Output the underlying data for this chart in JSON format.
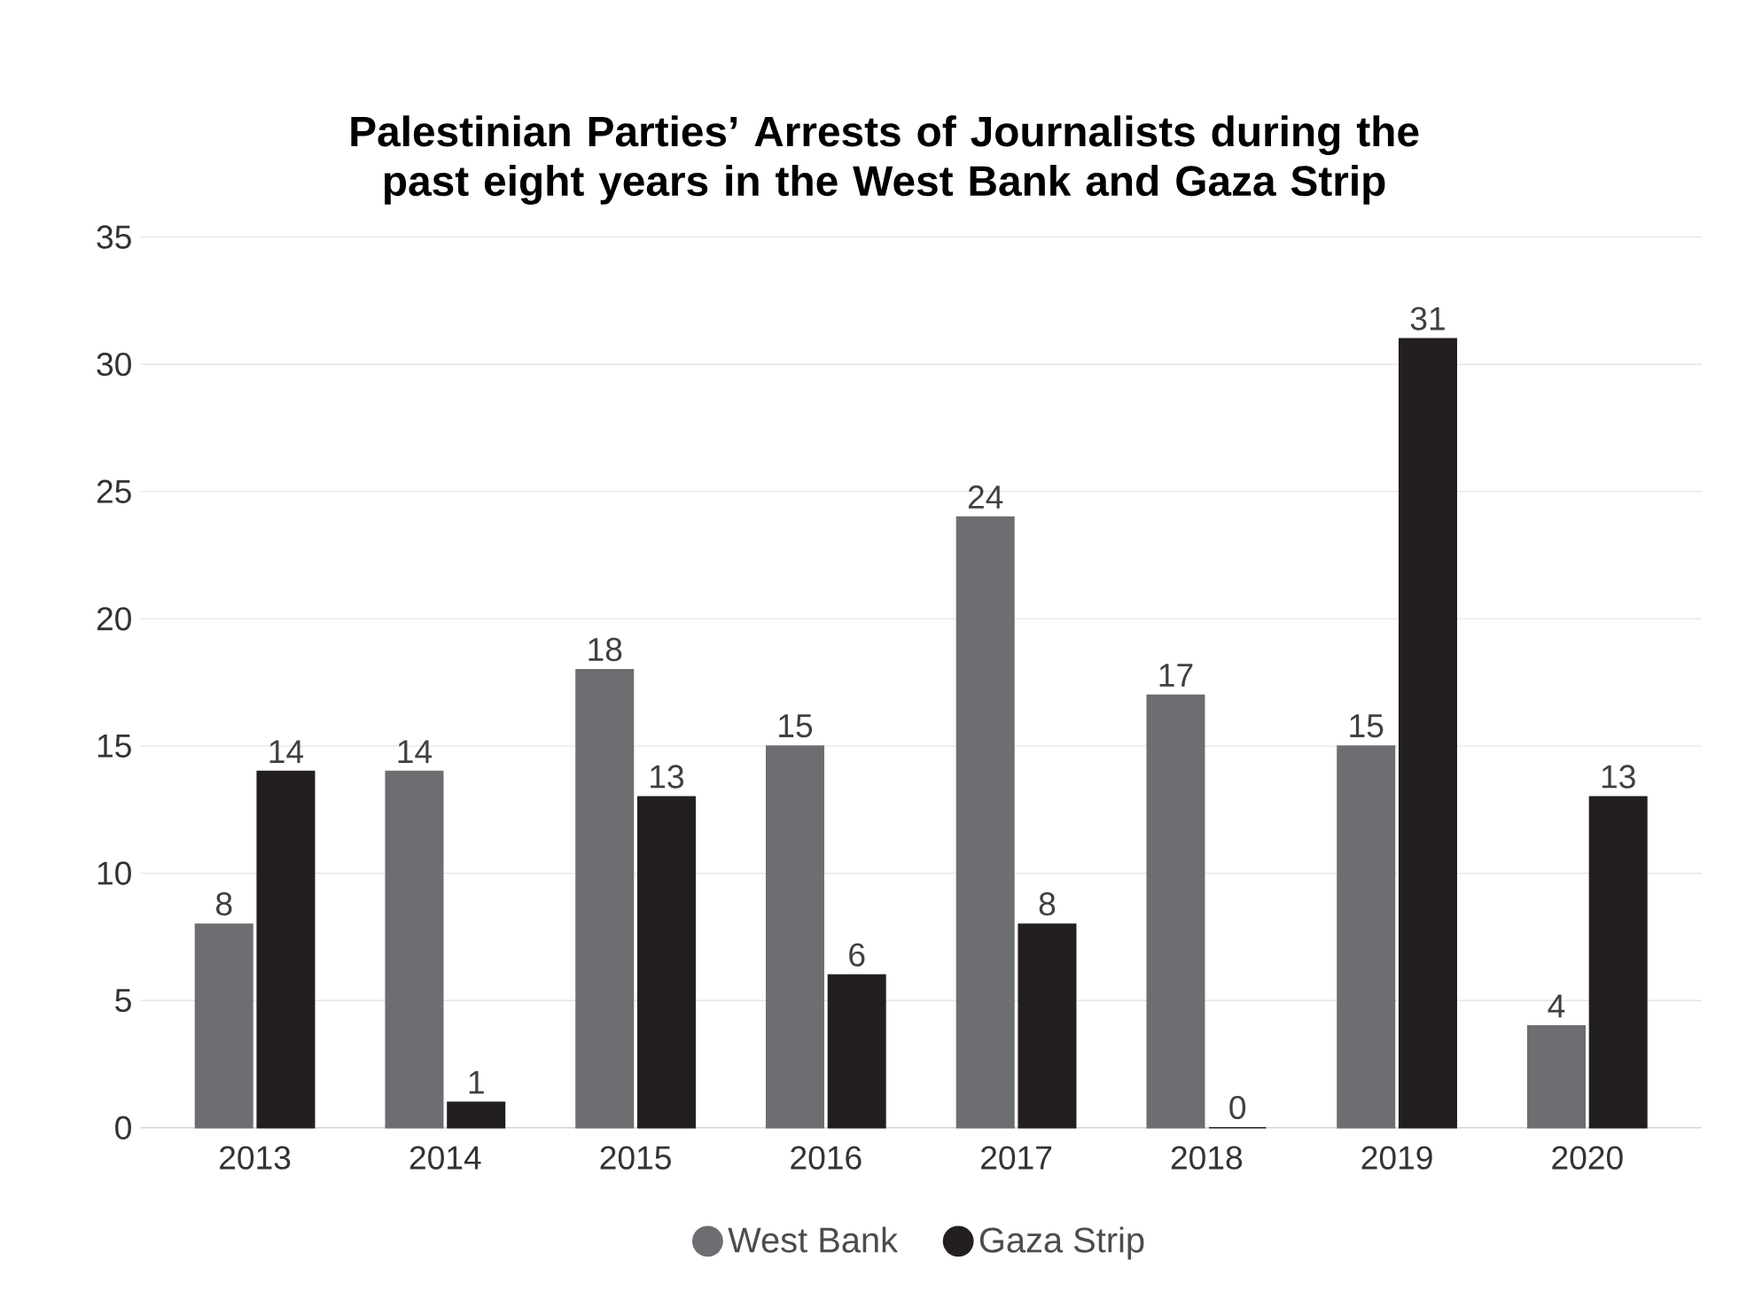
{
  "chart_data": {
    "type": "bar",
    "title": "Palestinian Parties’ Arrests of Journalists during the past eight years in the West Bank and Gaza Strip",
    "categories": [
      "2013",
      "2014",
      "2015",
      "2016",
      "2017",
      "2018",
      "2019",
      "2020"
    ],
    "series": [
      {
        "name": "West Bank",
        "color": "#6d6e71",
        "values": [
          8,
          14,
          18,
          15,
          24,
          17,
          15,
          4
        ]
      },
      {
        "name": "Gaza Strip",
        "color": "#231f20",
        "values": [
          14,
          1,
          13,
          6,
          8,
          0,
          31,
          13
        ]
      }
    ],
    "ylim": [
      0,
      35
    ],
    "yticks": [
      0,
      5,
      10,
      15,
      20,
      25,
      30,
      35
    ],
    "grid": "y",
    "legend": "bottom",
    "data_labels": true
  }
}
